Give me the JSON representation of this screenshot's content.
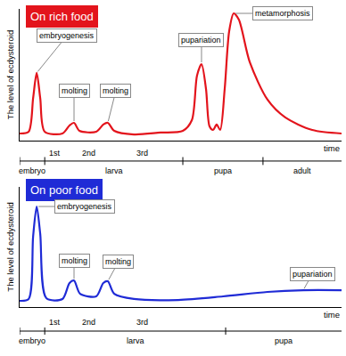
{
  "chart_data": [
    {
      "type": "line",
      "title": "On rich food",
      "color": "#e3141c",
      "y_label": "The level of ecdysteroid",
      "x_label": "time",
      "x": [
        0,
        2.8,
        4.2,
        5.3,
        6.4,
        7.8,
        13.3,
        15.5,
        16.9,
        18.6,
        23.8,
        26,
        27.4,
        29.4,
        35.5,
        43.8,
        50.7,
        53.5,
        55.1,
        56.5,
        57.9,
        59,
        60.1,
        61.2,
        62.3,
        63.7,
        65.1,
        66.5,
        68.1,
        71.5,
        77,
        82.5,
        90.9,
        100
      ],
      "values": [
        5.4,
        6.8,
        32.4,
        51.4,
        32.4,
        6.8,
        5.4,
        11.5,
        13.5,
        7.4,
        6.8,
        12.2,
        13.5,
        7.4,
        4.7,
        6.1,
        7.4,
        15.5,
        49.3,
        58.1,
        39.2,
        10.8,
        8.1,
        12.2,
        8.1,
        39.2,
        83.1,
        96.6,
        91.9,
        59.5,
        31.1,
        17.6,
        8.1,
        5.4
      ],
      "xlim": [
        0,
        100
      ],
      "ylim": [
        0,
        100
      ],
      "xticks": [],
      "yticks": [],
      "tick_labels": false,
      "annotations": [
        {
          "text": "embryogenesis",
          "x": 5.3,
          "y": 51.4
        },
        {
          "text": "molting",
          "x": 16.9,
          "y": 13.5
        },
        {
          "text": "molting",
          "x": 27.4,
          "y": 13.5
        },
        {
          "text": "pupariation",
          "x": 56.5,
          "y": 58.1
        },
        {
          "text": "metamorphosis",
          "x": 66.5,
          "y": 96.6
        }
      ],
      "stages": [
        {
          "text": "1st",
          "x": 11
        },
        {
          "text": "2nd",
          "x": 21.6
        },
        {
          "text": "3rd",
          "x": 38.2
        }
      ],
      "phases": [
        {
          "text": "embryo",
          "start": 0,
          "end": 7.8
        },
        {
          "text": "larva",
          "start": 7.8,
          "end": 50.7
        },
        {
          "text": "pupa",
          "start": 50.7,
          "end": 75.6
        },
        {
          "text": "adult",
          "start": 75.6,
          "end": 100
        }
      ]
    },
    {
      "type": "line",
      "title": "On poor food",
      "color": "#1f2bd6",
      "y_label": "The level of ecdysteroid",
      "x_label": "time",
      "x": [
        0,
        2.8,
        4.2,
        5.3,
        6.4,
        8.3,
        13.3,
        15.5,
        16.9,
        18.8,
        23.8,
        26,
        27.4,
        29.4,
        35.5,
        49.3,
        63.2,
        77,
        88.1,
        100
      ],
      "values": [
        5.2,
        6.7,
        59,
        83.7,
        61,
        7.4,
        6.7,
        20,
        22,
        11,
        8.9,
        20,
        21.5,
        11,
        6.7,
        5.9,
        8.9,
        12.6,
        14,
        14
      ],
      "xlim": [
        0,
        100
      ],
      "ylim": [
        0,
        100
      ],
      "xticks": [],
      "yticks": [],
      "tick_labels": false,
      "annotations": [
        {
          "text": "embryogenesis",
          "x": 5.3,
          "y": 83.7
        },
        {
          "text": "molting",
          "x": 16.9,
          "y": 22
        },
        {
          "text": "molting",
          "x": 27.4,
          "y": 21.5
        },
        {
          "text": "pupariation",
          "x": 88.1,
          "y": 14
        }
      ],
      "stages": [
        {
          "text": "1st",
          "x": 11
        },
        {
          "text": "2nd",
          "x": 21.6
        },
        {
          "text": "3rd",
          "x": 38.2
        }
      ],
      "phases": [
        {
          "text": "embryo",
          "start": 0,
          "end": 7.8
        },
        {
          "text": "larva",
          "start": 7.8,
          "end": 64
        },
        {
          "text": "pupa",
          "start": 64,
          "end": 100
        }
      ]
    }
  ]
}
